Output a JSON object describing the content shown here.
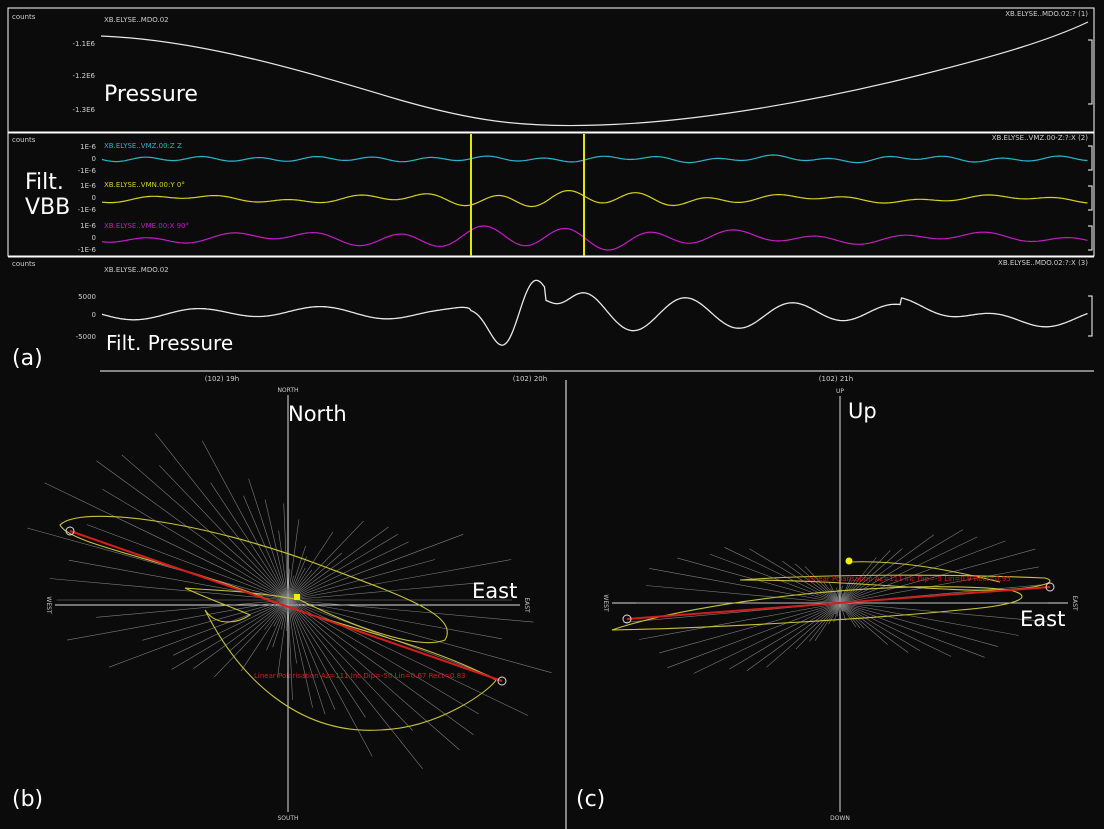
{
  "colors": {
    "background": "#0b0b0b",
    "frame": "#ffffff",
    "trace": "#e8e8e8",
    "cyan": "#2bb5c9",
    "yellow": "#d6d21e",
    "magenta": "#c41cc4",
    "pick_line": "#e6e600",
    "red": "#d41e1e",
    "ellipse": "#c8c23a",
    "rays": "#9a9a9a"
  },
  "panel_a": {
    "tag": "(a)",
    "time_axis": [
      "(102) 19h",
      "(102) 20h",
      "(102) 21h"
    ],
    "rows": {
      "pressure": {
        "units": "counts",
        "station": "XB.ELYSE..MDO.02",
        "header_right": "XB.ELYSE..MDO.02:? (1)",
        "big_label": "Pressure",
        "ticks": [
          "-1.1E6",
          "-1.2E6",
          "-1.3E6"
        ]
      },
      "vbb": {
        "units": "counts",
        "header_right": "XB.ELYSE..VMZ.00-Z:?:X (2)",
        "big_label_1": "Filt.",
        "big_label_2": "VBB",
        "tick_top": "1E-6",
        "tick_mid": "0",
        "tick_bot": "-1E-6",
        "names": [
          "XB.ELYSE..VMZ.00:Z Z",
          "XB.ELYSE..VMN.00:Y 0°",
          "XB.ELYSE..VME.00:X 90°"
        ]
      },
      "filt_pressure": {
        "units": "counts",
        "station": "XB.ELYSE..MDO.02",
        "header_right": "XB.ELYSE..MDO.02:?:X (3)",
        "big_label": "Filt. Pressure",
        "ticks": [
          "5000",
          "0",
          "-5000"
        ]
      }
    }
  },
  "panel_b": {
    "tag": "(b)",
    "north": "NORTH",
    "south": "SOUTH",
    "west": "WEST",
    "east": "EAST",
    "big_north": "North",
    "big_east": "East",
    "fit_text": "Linear Polarisation Az=111 Inc Dip=-50 Lin=0.67 Rect=0.83"
  },
  "panel_c": {
    "tag": "(c)",
    "up": "UP",
    "down": "DOWN",
    "west": "WEST",
    "east": "EAST",
    "big_up": "Up",
    "big_east": "East",
    "fit_text": "Linear Polarisation Az=111 Inc Dip=-5 Lin=0.9 Rect=0.95"
  }
}
